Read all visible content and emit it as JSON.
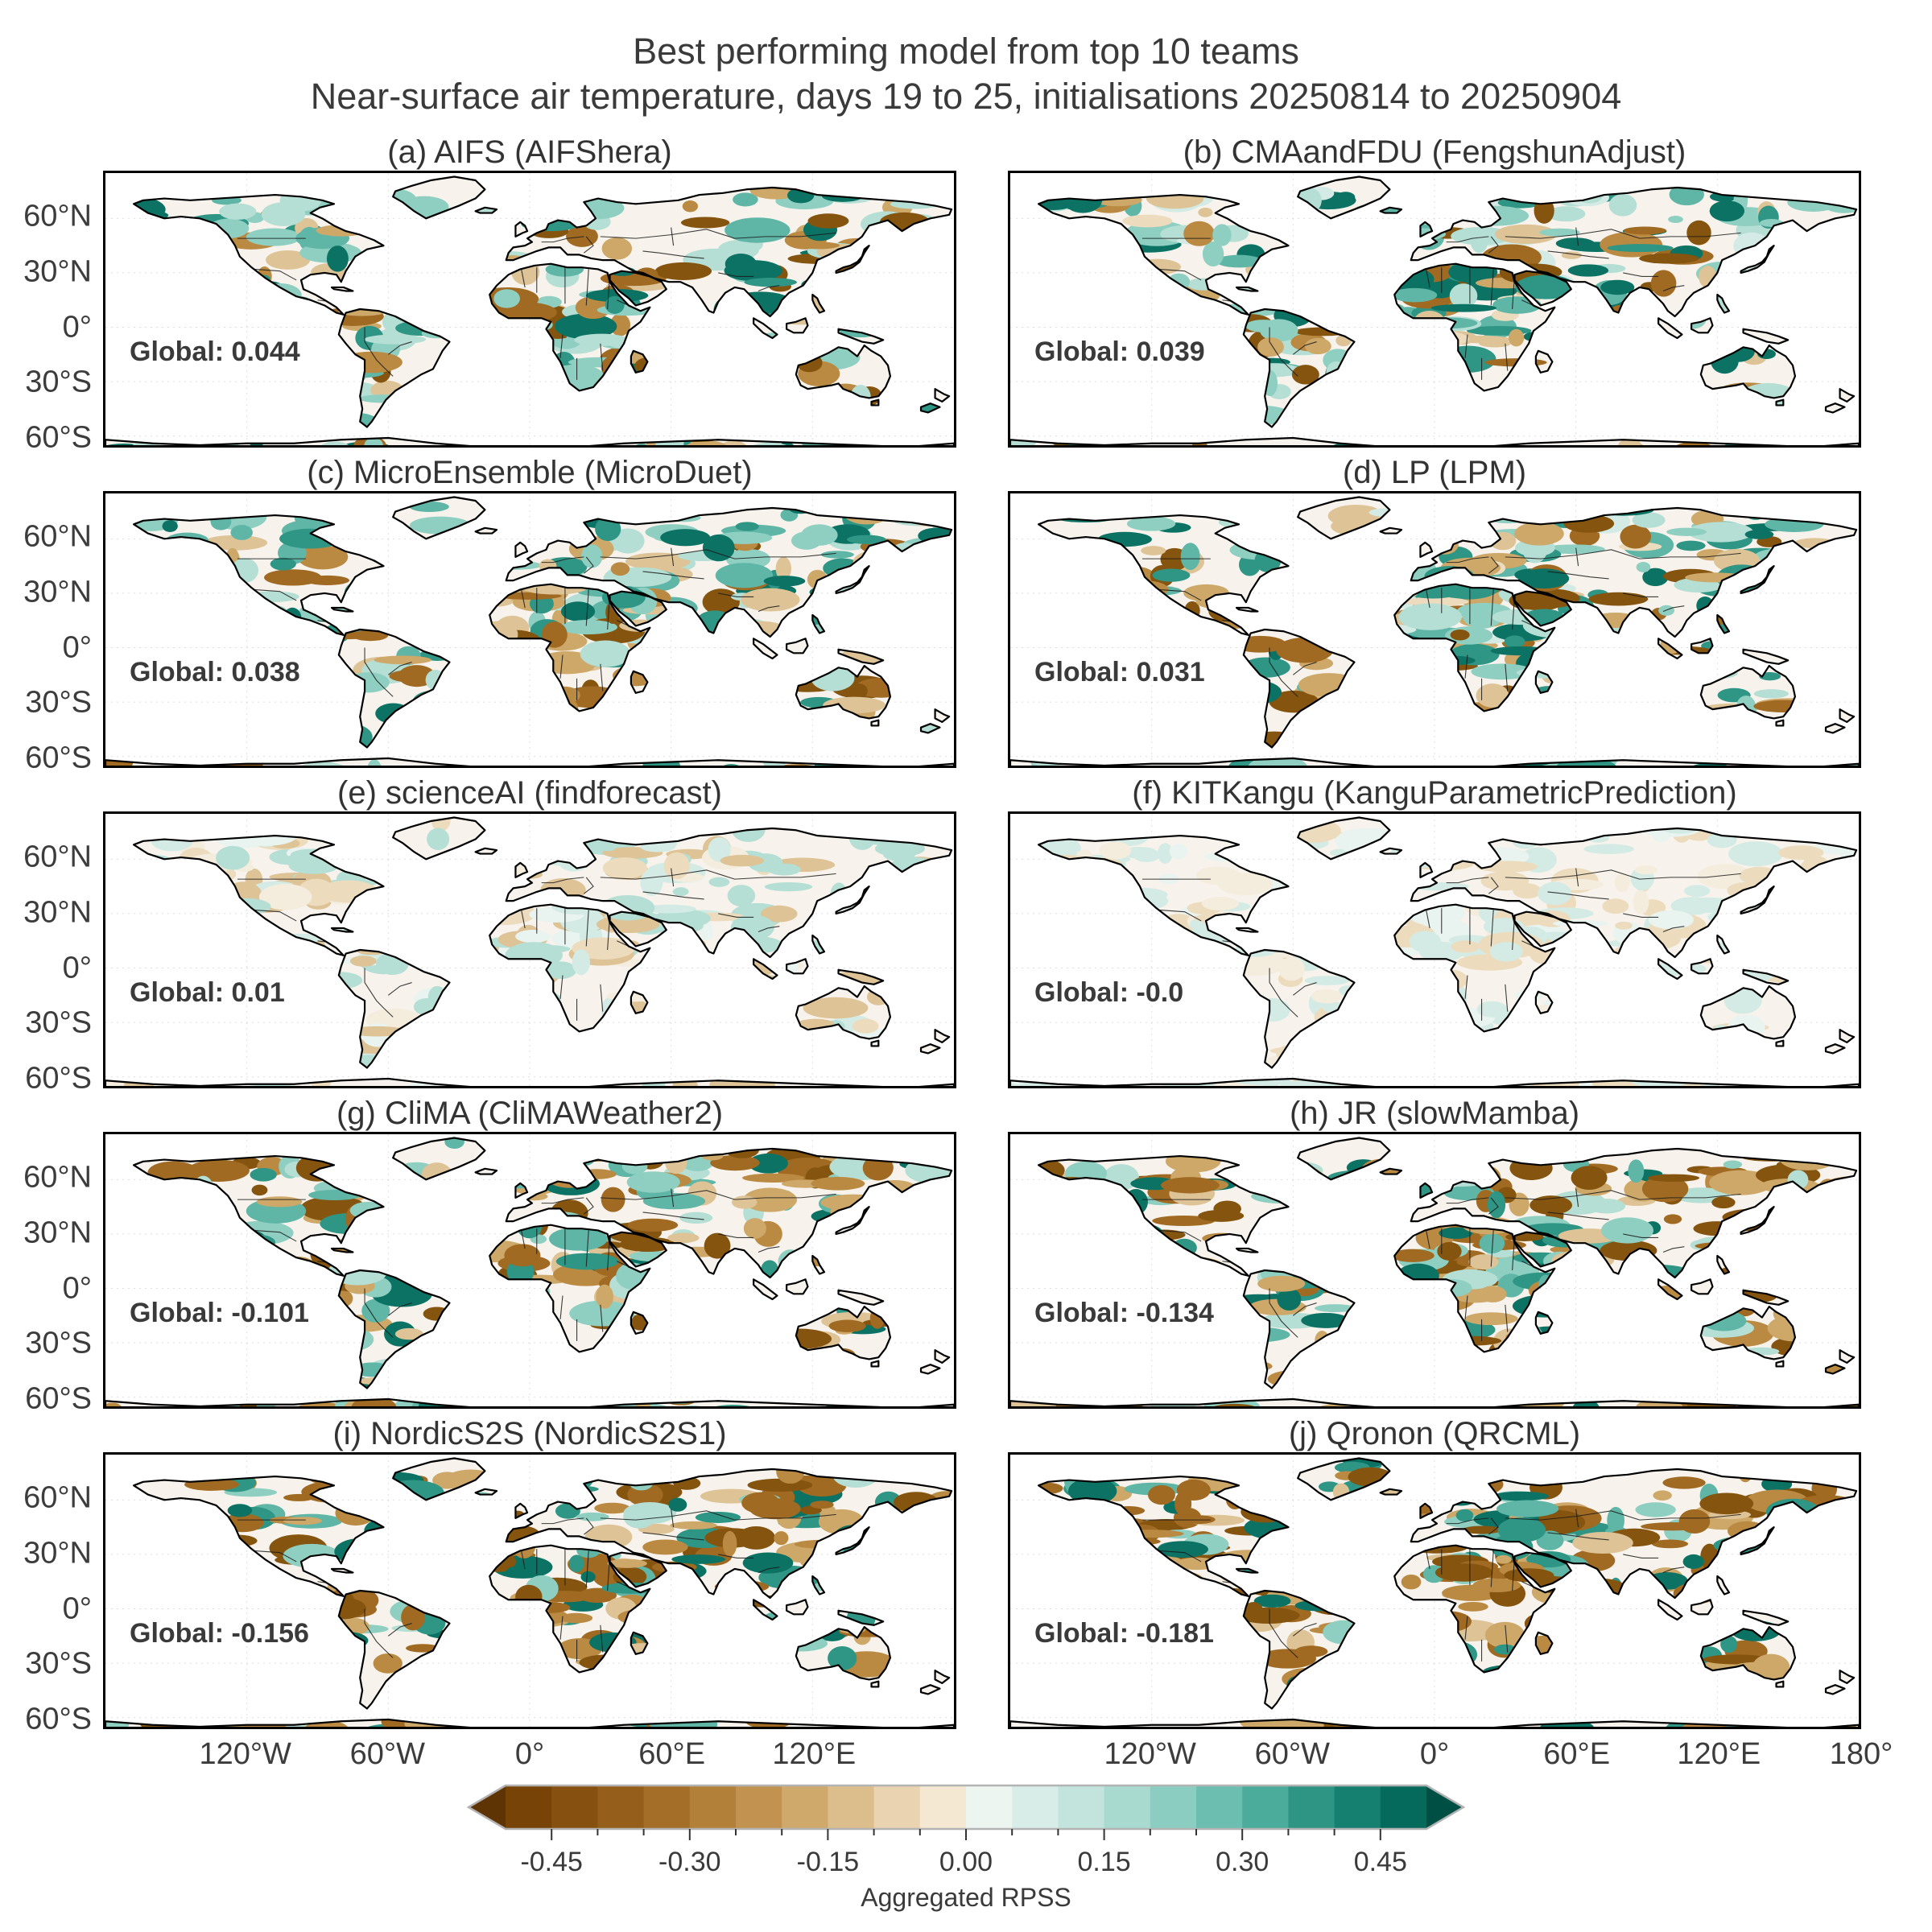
{
  "figure": {
    "title_line1": "Best performing model from top 10 teams",
    "title_line2": "Near-surface air temperature, days 19 to 25, initialisations 20250814 to 20250904"
  },
  "chart_data": {
    "type": "heatmap",
    "subtype": "5x2 grid of global equirectangular RPSS skill maps (land-only shading, white ocean)",
    "variable": "Near-surface air temperature",
    "lead_days": "19 to 25",
    "initialisations": "20250814 to 20250904",
    "y_ticks": [
      {
        "label": "60°N",
        "lat": 60
      },
      {
        "label": "30°N",
        "lat": 30
      },
      {
        "label": "0°",
        "lat": 0
      },
      {
        "label": "30°S",
        "lat": -30
      },
      {
        "label": "60°S",
        "lat": -60
      }
    ],
    "x_ticks_left_map": [
      {
        "label": "120°W",
        "lon": -120
      },
      {
        "label": "60°W",
        "lon": -60
      },
      {
        "label": "0°",
        "lon": 0
      },
      {
        "label": "60°E",
        "lon": 60
      },
      {
        "label": "120°E",
        "lon": 120
      }
    ],
    "x_ticks_right_map": [
      {
        "label": "120°W",
        "lon": -120
      },
      {
        "label": "60°W",
        "lon": -60
      },
      {
        "label": "0°",
        "lon": 0
      },
      {
        "label": "60°E",
        "lon": 60
      },
      {
        "label": "120°E",
        "lon": 120
      },
      {
        "label": "180°",
        "lon": 180
      }
    ],
    "gridlines": {
      "lat_step_deg": 30,
      "lon_step_deg": 60,
      "style": "dotted light gray"
    },
    "colorbar": {
      "label": "Aggregated RPSS",
      "tick_labels": [
        "-0.45",
        "-0.30",
        "-0.15",
        "0.00",
        "0.15",
        "0.30",
        "0.45"
      ],
      "tick_values": [
        -0.45,
        -0.3,
        -0.15,
        0,
        0.15,
        0.3,
        0.45
      ],
      "minor_tick_step": 0.05,
      "range": [
        -0.5,
        0.5
      ],
      "bin_width": 0.05,
      "colormap": "BrBG (brown negative, teal positive)",
      "extend": "both",
      "negative_color_hex": "#85540f",
      "positive_color_hex": "#0b7264"
    },
    "panels": [
      {
        "id": "a",
        "label": "(a) AIFS (AIFShera)",
        "team": "AIFS",
        "model": "AIFShera",
        "global_label": "Global: 0.044",
        "global_rpss": 0.044,
        "appearance": {
          "teal_fraction": 0.62,
          "intensity": 0.55,
          "max_shade": 6
        }
      },
      {
        "id": "b",
        "label": "(b) CMAandFDU (FengshunAdjust)",
        "team": "CMAandFDU",
        "model": "FengshunAdjust",
        "global_label": "Global: 0.039",
        "global_rpss": 0.039,
        "appearance": {
          "teal_fraction": 0.6,
          "intensity": 0.45,
          "max_shade": 6
        }
      },
      {
        "id": "c",
        "label": "(c) MicroEnsemble (MicroDuet)",
        "team": "MicroEnsemble",
        "model": "MicroDuet",
        "global_label": "Global: 0.038",
        "global_rpss": 0.038,
        "appearance": {
          "teal_fraction": 0.6,
          "intensity": 0.55,
          "max_shade": 6
        }
      },
      {
        "id": "d",
        "label": "(d) LP (LPM)",
        "team": "LP",
        "model": "LPM",
        "global_label": "Global: 0.031",
        "global_rpss": 0.031,
        "appearance": {
          "teal_fraction": 0.58,
          "intensity": 0.5,
          "max_shade": 6
        }
      },
      {
        "id": "e",
        "label": "(e) scienceAI (findforecast)",
        "team": "scienceAI",
        "model": "findforecast",
        "global_label": "Global: 0.01",
        "global_rpss": 0.01,
        "appearance": {
          "teal_fraction": 0.55,
          "intensity": 0.15,
          "max_shade": 2
        }
      },
      {
        "id": "f",
        "label": "(f) KITKangu (KanguParametricPrediction)",
        "team": "KITKangu",
        "model": "KanguParametricPrediction",
        "global_label": "Global: -0.0",
        "global_rpss": -0.0,
        "appearance": {
          "teal_fraction": 0.5,
          "intensity": 0.03,
          "max_shade": 1
        }
      },
      {
        "id": "g",
        "label": "(g) CliMA (CliMAWeather2)",
        "team": "CliMA",
        "model": "CliMAWeather2",
        "global_label": "Global: -0.101",
        "global_rpss": -0.101,
        "appearance": {
          "teal_fraction": 0.42,
          "intensity": 0.65,
          "max_shade": 6
        }
      },
      {
        "id": "h",
        "label": "(h) JR (slowMamba)",
        "team": "JR",
        "model": "slowMamba",
        "global_label": "Global: -0.134",
        "global_rpss": -0.134,
        "appearance": {
          "teal_fraction": 0.4,
          "intensity": 0.65,
          "max_shade": 6
        }
      },
      {
        "id": "i",
        "label": "(i) NordicS2S (NordicS2S1)",
        "team": "NordicS2S",
        "model": "NordicS2S1",
        "global_label": "Global: -0.156",
        "global_rpss": -0.156,
        "appearance": {
          "teal_fraction": 0.38,
          "intensity": 0.68,
          "max_shade": 6
        }
      },
      {
        "id": "j",
        "label": "(j) Qronon (QRCML)",
        "team": "Qronon",
        "model": "QRCML",
        "global_label": "Global: -0.181",
        "global_rpss": -0.181,
        "appearance": {
          "teal_fraction": 0.36,
          "intensity": 0.7,
          "max_shade": 6
        }
      }
    ]
  }
}
